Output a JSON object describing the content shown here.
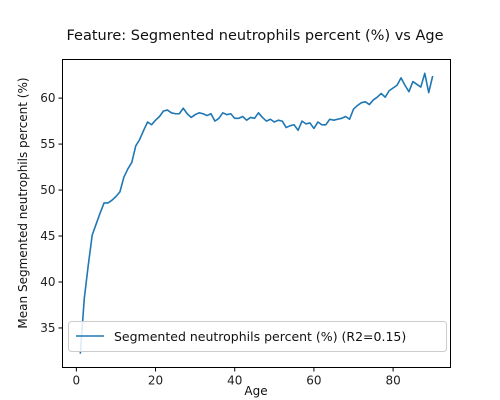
{
  "chart_data": {
    "type": "line",
    "title": "Feature: Segmented neutrophils percent (%) vs Age",
    "xlabel": "Age",
    "ylabel": "Mean Segmented neutrophils percent (%)",
    "xlim": [
      -3.5,
      94.5
    ],
    "ylim": [
      30.7,
      64.2
    ],
    "xticks": [
      0,
      20,
      40,
      60,
      80
    ],
    "yticks": [
      35,
      40,
      45,
      50,
      55,
      60
    ],
    "grid": false,
    "legend_position": "lower-left",
    "line_color": "#1f77b4",
    "series": [
      {
        "name": "Segmented neutrophils percent (%) (R2=0.15)",
        "x": [
          1,
          2,
          3,
          4,
          5,
          6,
          7,
          8,
          9,
          10,
          11,
          12,
          13,
          14,
          15,
          16,
          17,
          18,
          19,
          20,
          21,
          22,
          23,
          24,
          25,
          26,
          27,
          28,
          29,
          30,
          31,
          32,
          33,
          34,
          35,
          36,
          37,
          38,
          39,
          40,
          41,
          42,
          43,
          44,
          45,
          46,
          47,
          48,
          49,
          50,
          51,
          52,
          53,
          54,
          55,
          56,
          57,
          58,
          59,
          60,
          61,
          62,
          63,
          64,
          65,
          66,
          67,
          68,
          69,
          70,
          71,
          72,
          73,
          74,
          75,
          76,
          77,
          78,
          79,
          80,
          81,
          82,
          83,
          84,
          85,
          86,
          87,
          88,
          89,
          90
        ],
        "y": [
          32.2,
          38.2,
          41.8,
          45.1,
          46.3,
          47.5,
          48.6,
          48.6,
          48.9,
          49.3,
          49.8,
          51.4,
          52.3,
          53.0,
          54.8,
          55.5,
          56.5,
          57.4,
          57.1,
          57.6,
          58.0,
          58.6,
          58.7,
          58.4,
          58.3,
          58.3,
          58.9,
          58.3,
          57.9,
          58.2,
          58.4,
          58.3,
          58.1,
          58.3,
          57.5,
          57.8,
          58.4,
          58.2,
          58.3,
          57.8,
          57.8,
          58.0,
          57.6,
          57.9,
          57.8,
          58.4,
          57.9,
          57.5,
          57.7,
          57.4,
          57.6,
          57.5,
          56.8,
          57.0,
          57.1,
          56.5,
          57.5,
          57.2,
          57.3,
          56.7,
          57.4,
          57.1,
          57.1,
          57.7,
          57.6,
          57.7,
          57.8,
          58.0,
          57.7,
          58.8,
          59.2,
          59.5,
          59.6,
          59.3,
          59.8,
          60.1,
          60.5,
          60.1,
          60.8,
          61.1,
          61.4,
          62.2,
          61.4,
          60.7,
          61.8,
          61.5,
          61.2,
          62.7,
          60.6,
          62.4
        ]
      }
    ]
  }
}
